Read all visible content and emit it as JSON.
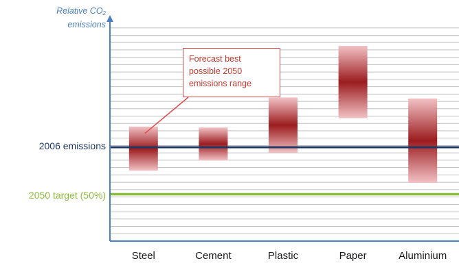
{
  "chart_data": {
    "type": "range-bar",
    "ylabel_main": "Relative CO",
    "ylabel_sub": "2",
    "ylabel_tail": "emissions",
    "categories": [
      "Steel",
      "Cement",
      "Plastic",
      "Paper",
      "Aluminium"
    ],
    "ranges": [
      {
        "low": 0.75,
        "high": 1.22
      },
      {
        "low": 0.86,
        "high": 1.21
      },
      {
        "low": 0.94,
        "high": 1.53
      },
      {
        "low": 1.31,
        "high": 2.08
      },
      {
        "low": 0.62,
        "high": 1.52
      }
    ],
    "ylim": [
      0,
      2.35
    ],
    "grid": true,
    "reference_lines": [
      {
        "label": "2006 emissions",
        "value": 1.0,
        "color": "#1f3864"
      },
      {
        "label": "2050 target (50%)",
        "value": 0.5,
        "color": "#8cbd3a"
      }
    ],
    "annotation": {
      "lines": [
        "Forecast best",
        "possible 2050",
        "emissions range"
      ],
      "points_to": "Steel"
    },
    "colors": {
      "bar_core": "#9b1c1f",
      "bar_edge": "#f2c2c5",
      "axis": "#4a7fc1",
      "grid": "#bfbfbf",
      "callout_border": "#e0484b",
      "callout_text": "#c0392b"
    }
  }
}
